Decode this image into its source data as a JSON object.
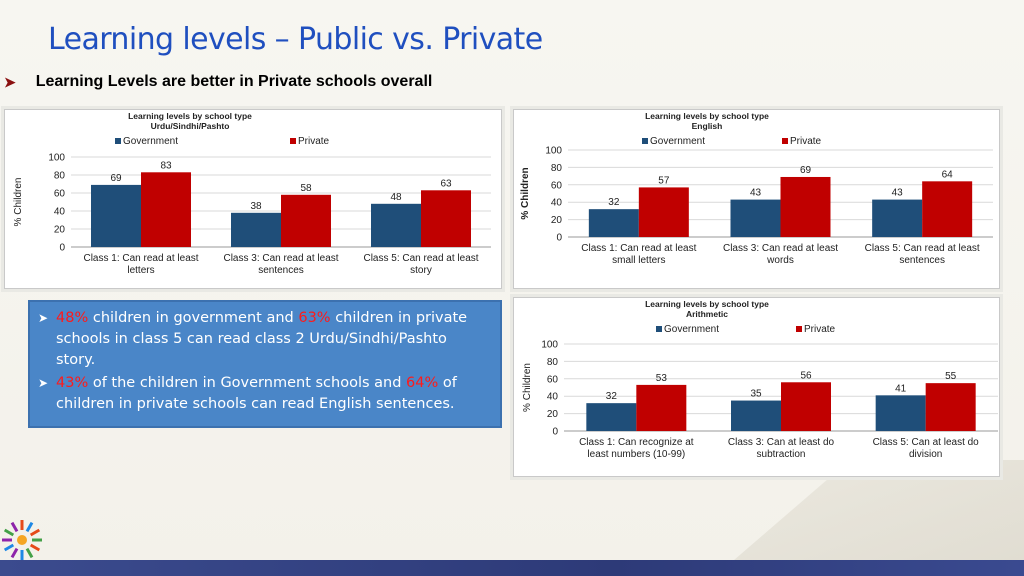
{
  "slide": {
    "title": "Learning levels – Public vs. Private",
    "subtitle": "Learning Levels are better in Private schools overall"
  },
  "colors": {
    "government": "#1f4e79",
    "private": "#c00000",
    "title": "#1f4fbf",
    "info_box": "#4a86c8",
    "highlight": "#ff1a1a"
  },
  "icons": {
    "subtitle_bullet": "arrow-bullet-icon",
    "logo": "sunburst-logo-icon"
  },
  "info": {
    "b1_pre": "48%",
    "b1_mid": " children in government and ",
    "b1_hl2": "63%",
    "b1_post": " children in private schools in class 5 can read class 2 Urdu/Sindhi/Pashto story.",
    "b2_hl1": "43%",
    "b2_mid": " of the children in Government schools and ",
    "b2_hl2": "64%",
    "b2_post": " of children in private schools can read English sentences."
  },
  "chart_data": [
    {
      "type": "bar",
      "title": "Learning levels by school type",
      "subtitle": "Urdu/Sindhi/Pashto",
      "ylabel": "% Children",
      "ylim": [
        0,
        100
      ],
      "yticks": [
        0,
        20,
        40,
        60,
        80,
        100
      ],
      "grid": true,
      "legend": "top",
      "categories": [
        [
          "Class 1: Can read  at least",
          "letters"
        ],
        [
          "Class 3: Can read  at least",
          "sentences"
        ],
        [
          "Class 5: Can read  at least",
          "story"
        ]
      ],
      "series": [
        {
          "name": "Government",
          "values": [
            69,
            38,
            48
          ]
        },
        {
          "name": "Private",
          "values": [
            83,
            58,
            63
          ]
        }
      ]
    },
    {
      "type": "bar",
      "title": "Learning levels by school type",
      "subtitle": "English",
      "ylabel": "% Children",
      "ylim": [
        0,
        100
      ],
      "yticks": [
        0,
        20,
        40,
        60,
        80,
        100
      ],
      "grid": true,
      "legend": "top",
      "categories": [
        [
          "Class 1: Can read at least",
          "small letters"
        ],
        [
          "Class 3: Can read at least",
          "words"
        ],
        [
          "Class 5: Can read at least",
          "sentences"
        ]
      ],
      "series": [
        {
          "name": "Government",
          "values": [
            32,
            43,
            43
          ]
        },
        {
          "name": "Private",
          "values": [
            57,
            69,
            64
          ]
        }
      ]
    },
    {
      "type": "bar",
      "title": "Learning levels by school type",
      "subtitle": "Arithmetic",
      "ylabel": "% Children",
      "ylim": [
        0,
        100
      ],
      "yticks": [
        0,
        20,
        40,
        60,
        80,
        100
      ],
      "grid": true,
      "legend": "top",
      "categories": [
        [
          "Class 1: Can recognize at",
          "least numbers (10-99)"
        ],
        [
          "Class 3: Can at least do",
          "subtraction"
        ],
        [
          "Class 5: Can at least do",
          "division"
        ]
      ],
      "series": [
        {
          "name": "Government",
          "values": [
            32,
            35,
            41
          ]
        },
        {
          "name": "Private",
          "values": [
            53,
            56,
            55
          ]
        }
      ]
    }
  ]
}
